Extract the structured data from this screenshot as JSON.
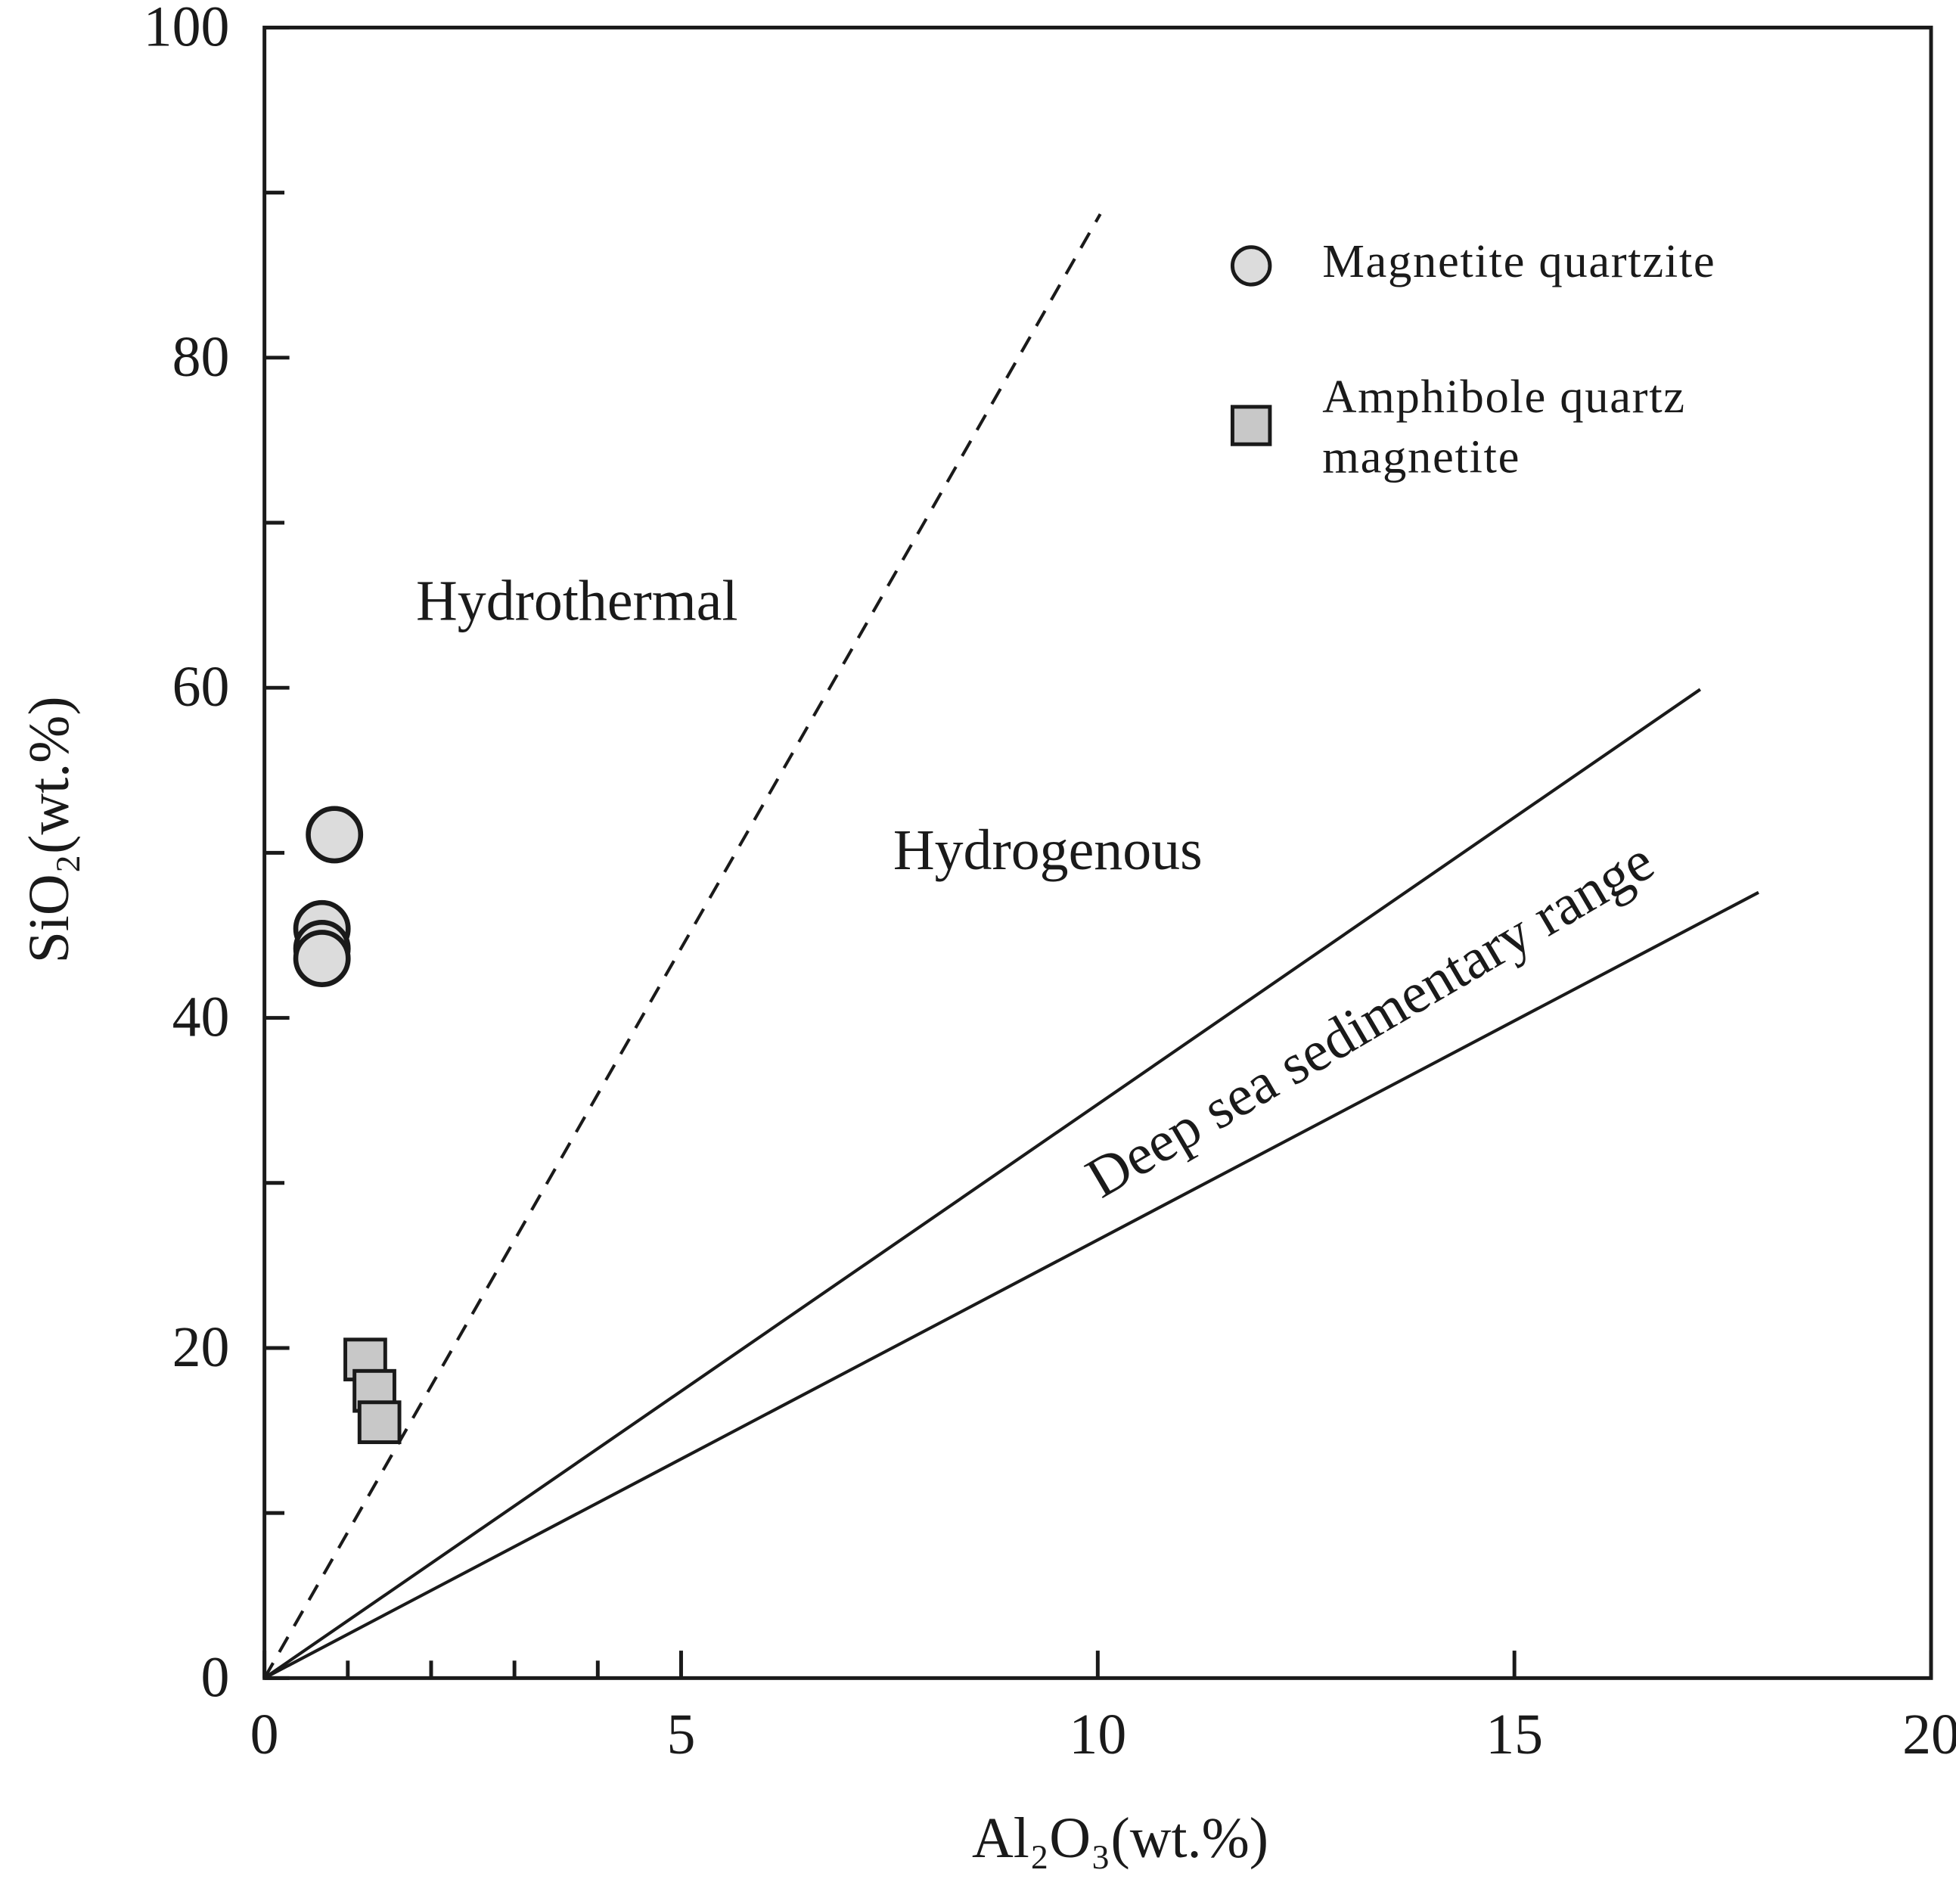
{
  "chart_data": {
    "type": "scatter",
    "xlabel": "Al₂O₃(wt.%)",
    "ylabel": "SiO₂(wt.%)",
    "xlim": [
      0,
      20
    ],
    "ylim": [
      0,
      100
    ],
    "xticks": [
      0,
      5,
      10,
      15,
      20
    ],
    "yticks": [
      0,
      20,
      40,
      60,
      80,
      100
    ],
    "xminor": [
      1,
      2,
      3,
      4
    ],
    "yminor": [
      10,
      30,
      50,
      70,
      90
    ],
    "legend": "upper right",
    "series": [
      {
        "name": "Magnetite quartzite",
        "marker": "circle",
        "color": "#dcdcdc",
        "x": [
          0.84,
          0.69,
          0.69,
          0.69
        ],
        "values": [
          51.1,
          45.4,
          44.2,
          43.6
        ]
      },
      {
        "name": "Amphibole quartz magnetite",
        "marker": "square",
        "color": "#c8c8c8",
        "x": [
          1.21,
          1.32,
          1.38
        ],
        "values": [
          19.3,
          17.4,
          15.5
        ]
      }
    ],
    "reference_lines": [
      {
        "x": [
          0,
          10.03
        ],
        "y": [
          0,
          88.7
        ],
        "dashed": true
      },
      {
        "x": [
          0,
          17.23
        ],
        "y": [
          0,
          59.9
        ],
        "dashed": false
      },
      {
        "x": [
          0,
          17.93
        ],
        "y": [
          0,
          47.6
        ],
        "dashed": false
      }
    ],
    "annotations": [
      {
        "text": "Hydrothermal",
        "x": 3.75,
        "y": 64.9,
        "angle": 0
      },
      {
        "text": "Hydrogenous",
        "x": 9.4,
        "y": 49.8,
        "angle": 0
      },
      {
        "text": "Deep sea sedimentary range",
        "x": 13.3,
        "y": 39.6,
        "angle": -30.4
      }
    ]
  }
}
